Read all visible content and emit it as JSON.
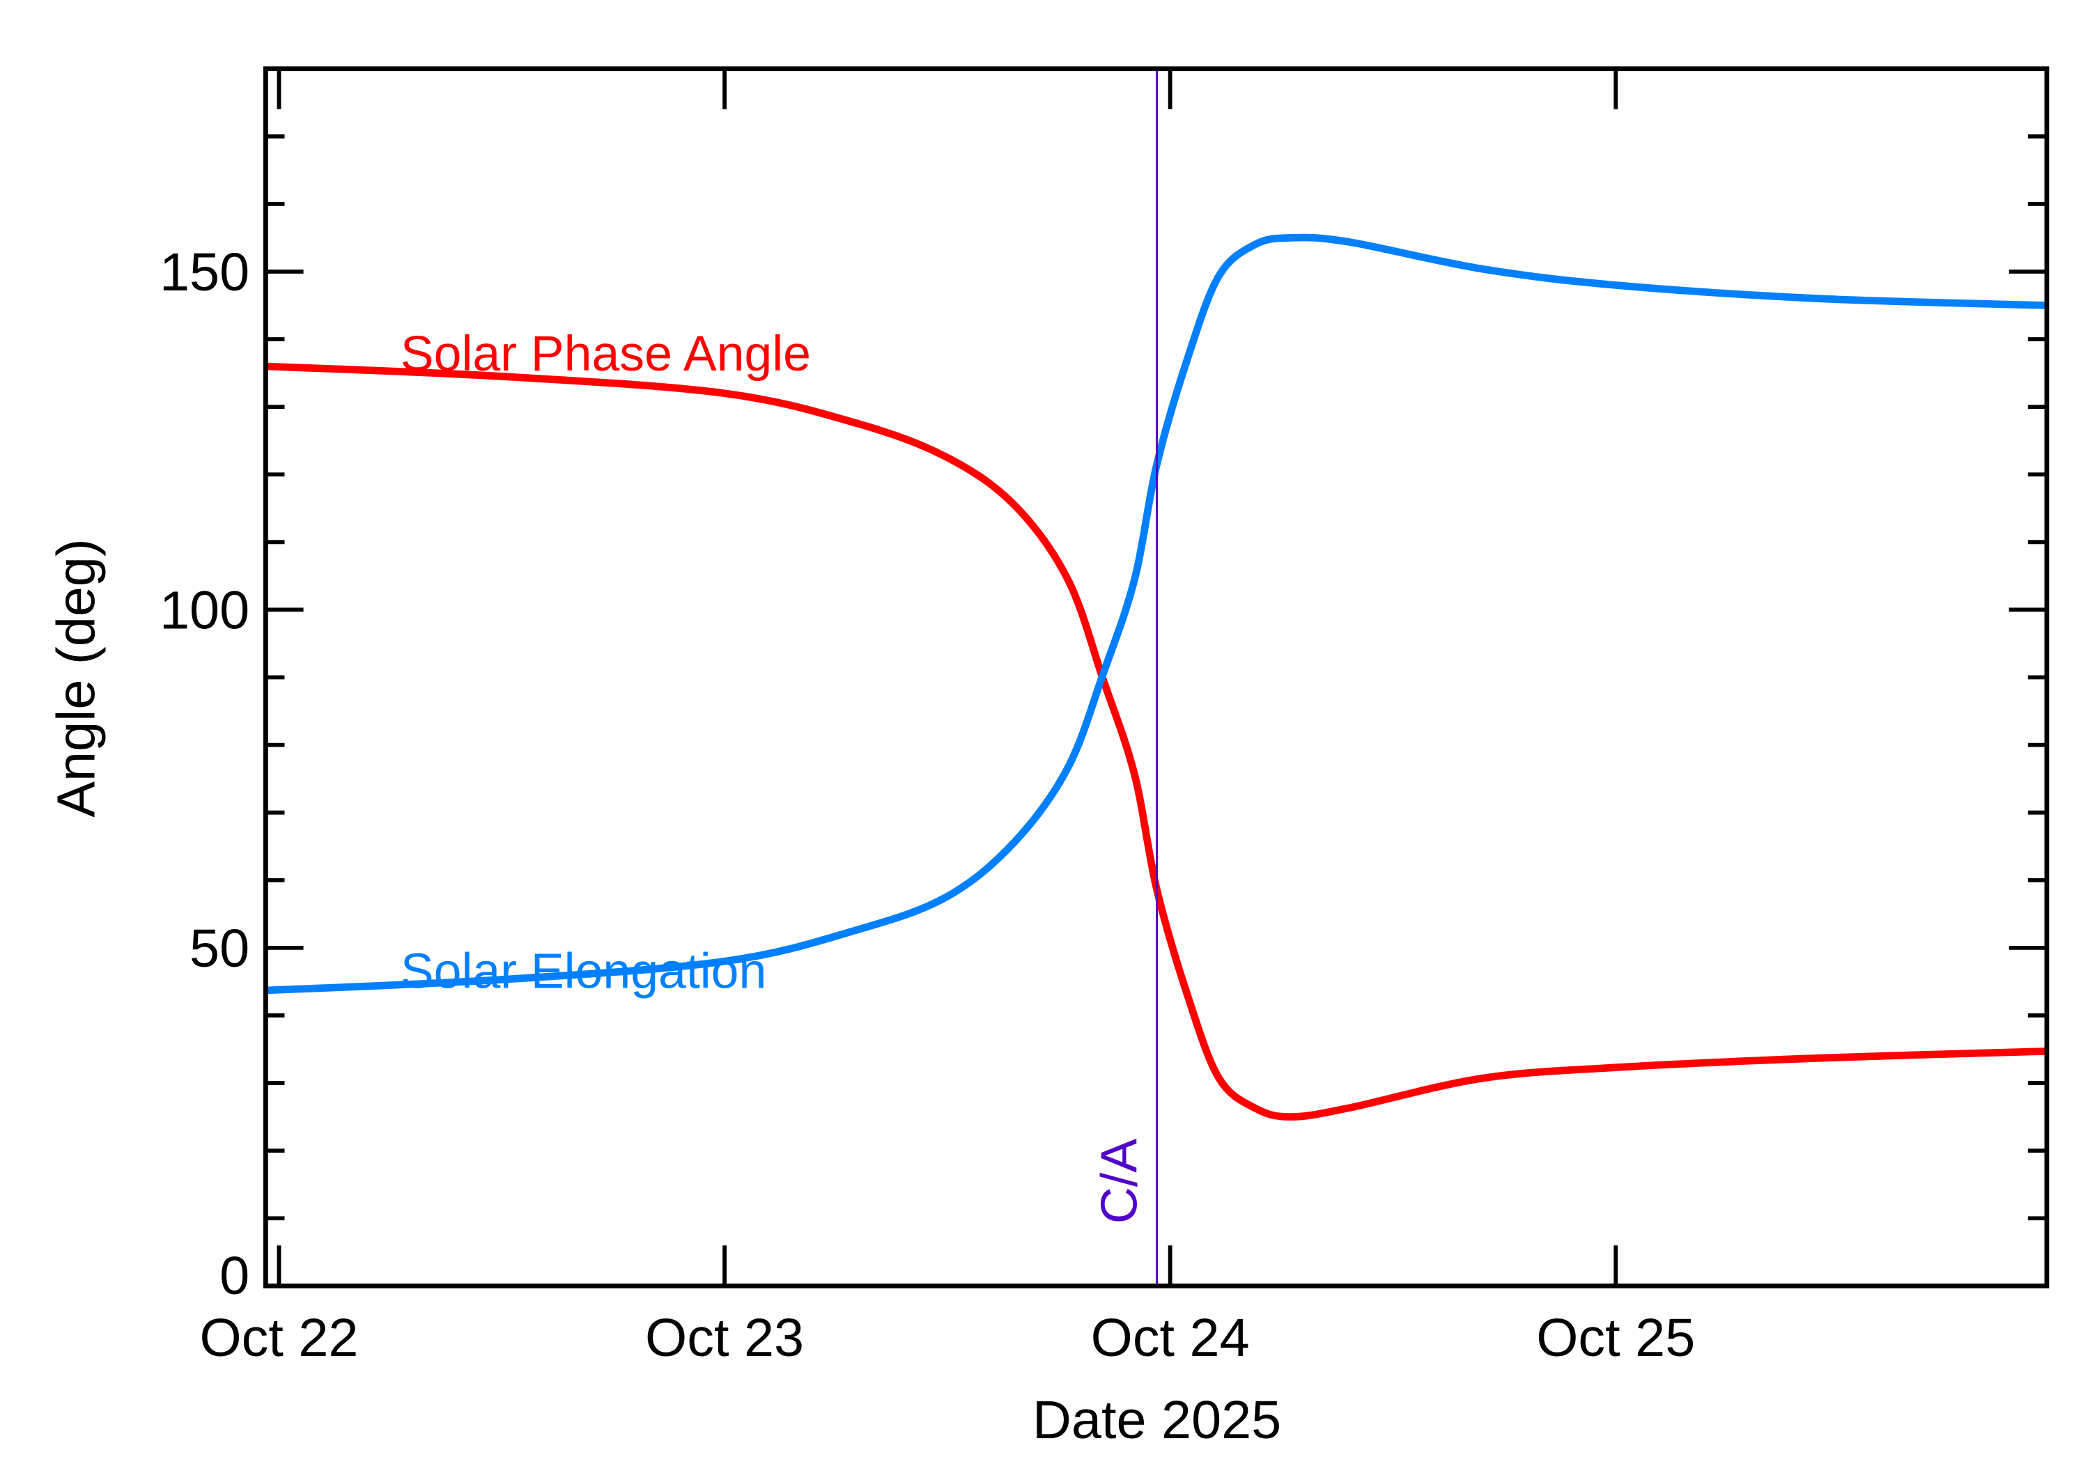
{
  "chart_data": {
    "type": "line",
    "title": "",
    "xlabel": "Date 2025",
    "ylabel": "Angle (deg)",
    "xlim": [
      "2025-10-21 23:17",
      "2025-10-25 23:13"
    ],
    "ylim": [
      0,
      180
    ],
    "x_tick_labels": [
      "Oct 22",
      "Oct 23",
      "Oct 24",
      "Oct 25"
    ],
    "x_ticks": [
      "2025-10-22 00:00",
      "2025-10-23 00:00",
      "2025-10-24 00:00",
      "2025-10-25 00:00"
    ],
    "y_tick_labels": [
      "0",
      "50",
      "100",
      "150"
    ],
    "y_ticks": [
      0,
      50,
      100,
      150
    ],
    "y_minor_step": 10,
    "grid": false,
    "x": [
      "2025-10-21 23:17",
      "2025-10-22 12:00",
      "2025-10-23 00:00",
      "2025-10-23 07:12",
      "2025-10-23 12:00",
      "2025-10-23 15:36",
      "2025-10-23 18:29",
      "2025-10-23 20:24",
      "2025-10-23 22:05",
      "2025-10-23 23:17",
      "2025-10-24 00:58",
      "2025-10-24 02:38",
      "2025-10-24 04:34",
      "2025-10-24 06:29",
      "2025-10-24 09:36",
      "2025-10-24 16:48",
      "2025-10-25 00:00",
      "2025-10-25 11:02",
      "2025-10-25 23:13"
    ],
    "series": [
      {
        "name": "Solar Phase Angle",
        "color": "#ff0000",
        "values": [
          136,
          134.5,
          132,
          127.5,
          122.5,
          115.5,
          104.5,
          89.6,
          75.6,
          58.6,
          42.7,
          30.7,
          26.3,
          25,
          26.3,
          30.7,
          32.3,
          33.7,
          34.7
        ]
      },
      {
        "name": "Solar Elongation",
        "color": "#0080ff",
        "values": [
          43.7,
          45.3,
          48,
          52.7,
          57.6,
          65.6,
          76.6,
          90.6,
          104.5,
          121.5,
          137.4,
          149.4,
          154,
          155,
          154.4,
          150.4,
          148,
          146,
          145
        ]
      }
    ],
    "annotations": [
      {
        "text": "C/A",
        "x": "2025-10-23 23:17",
        "color": "#5000c8",
        "kind": "vertical-line"
      }
    ]
  }
}
